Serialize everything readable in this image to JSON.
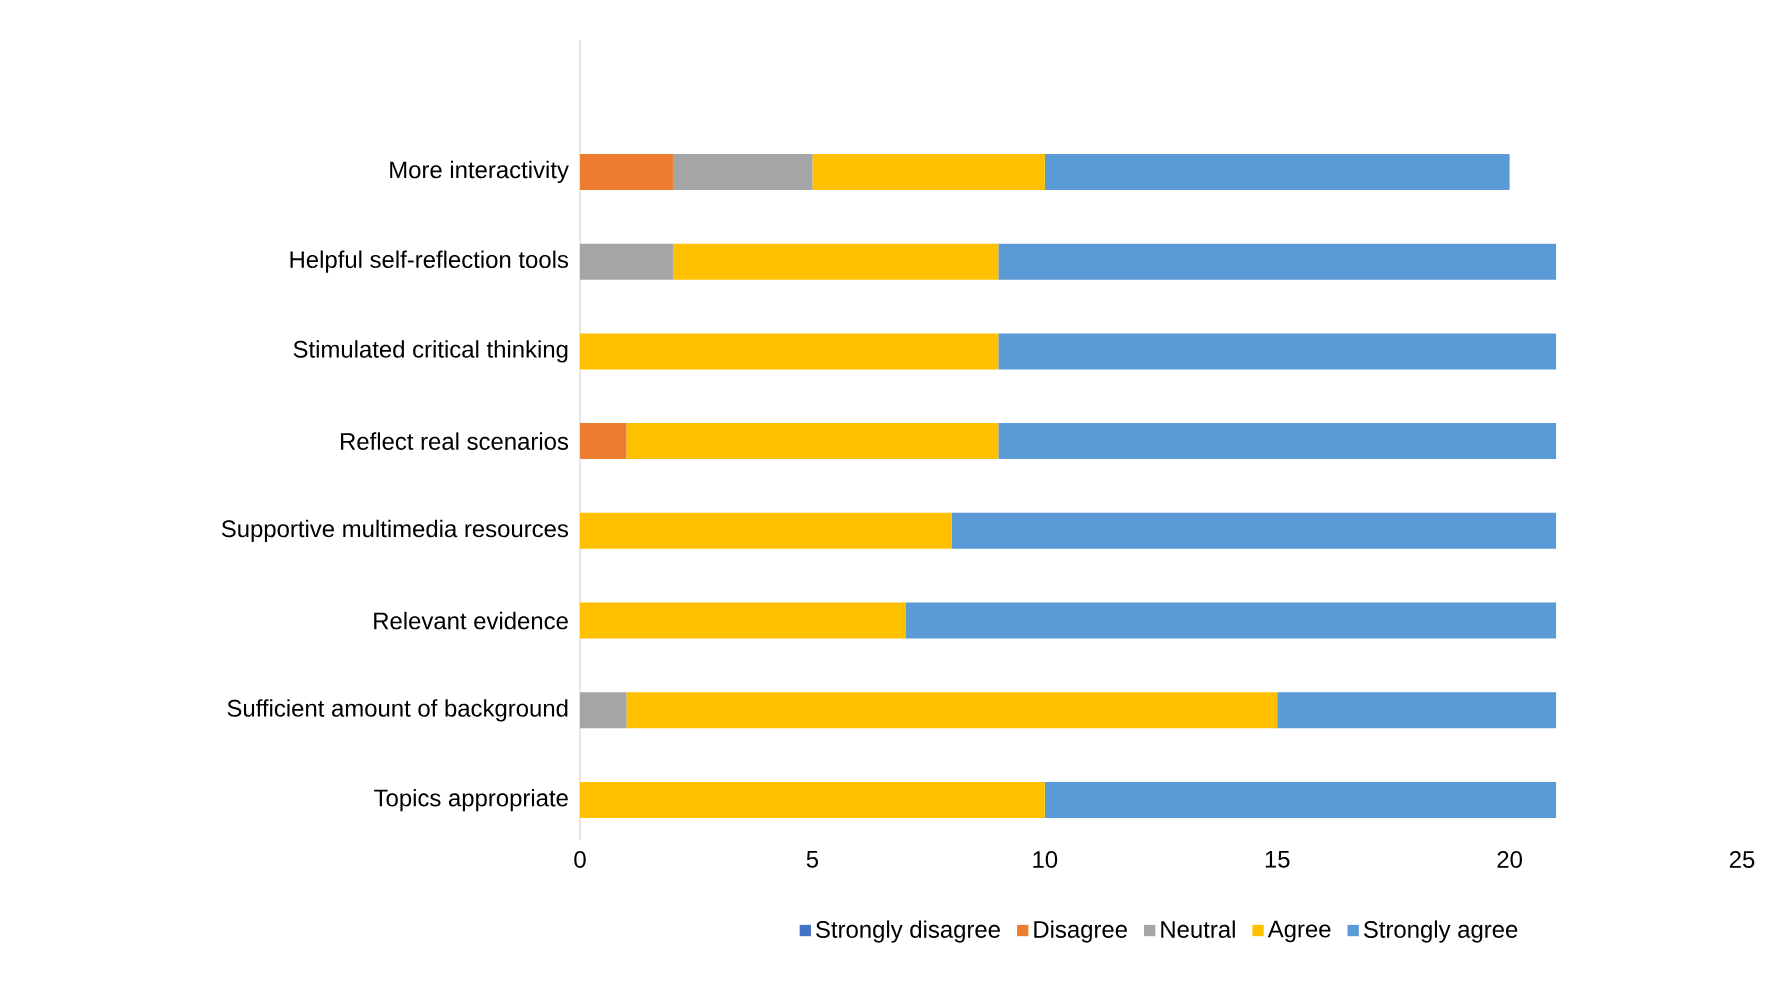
{
  "chart_data": {
    "type": "bar",
    "orientation": "horizontal",
    "stacked": true,
    "categories": [
      "More interactivity",
      "Helpful self-reflection tools",
      "Stimulated critical thinking",
      "Reflect real scenarios",
      "Supportive multimedia resources",
      "Relevant evidence",
      "Sufficient amount of background",
      "Topics appropriate"
    ],
    "series": [
      {
        "name": "Strongly disagree",
        "color": "#4472c4",
        "values": [
          0,
          0,
          0,
          0,
          0,
          0,
          0,
          0
        ]
      },
      {
        "name": "Disagree",
        "color": "#ed7d31",
        "values": [
          2,
          0,
          0,
          1,
          0,
          0,
          0,
          0
        ]
      },
      {
        "name": "Neutral",
        "color": "#a5a5a5",
        "values": [
          3,
          2,
          0,
          0,
          0,
          0,
          1,
          0
        ]
      },
      {
        "name": "Agree",
        "color": "#ffc000",
        "values": [
          5,
          7,
          9,
          8,
          8,
          7,
          14,
          10
        ]
      },
      {
        "name": "Strongly agree",
        "color": "#5b9bd5",
        "values": [
          10,
          12,
          12,
          12,
          13,
          14,
          6,
          11
        ]
      }
    ],
    "xlim": [
      0,
      25
    ],
    "xticks": [
      0,
      5,
      10,
      15,
      20,
      25
    ],
    "grid": false,
    "legend": "bottom"
  }
}
